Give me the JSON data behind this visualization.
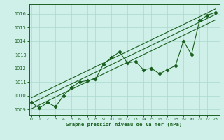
{
  "title": "Graphe pression niveau de la mer (hPa)",
  "bg_color": "#cff0e8",
  "grid_color": "#a8d8cc",
  "line_color": "#1a6020",
  "x_ticks": [
    0,
    1,
    2,
    3,
    4,
    5,
    6,
    7,
    8,
    9,
    10,
    11,
    12,
    13,
    14,
    15,
    16,
    17,
    18,
    19,
    20,
    21,
    22,
    23
  ],
  "y_ticks": [
    1009,
    1010,
    1011,
    1012,
    1013,
    1014,
    1015,
    1016
  ],
  "ylim": [
    1008.6,
    1016.7
  ],
  "xlim": [
    -0.3,
    23.5
  ],
  "data_y": [
    1009.5,
    1009.1,
    1009.5,
    1009.2,
    1010.0,
    1010.6,
    1011.0,
    1011.1,
    1011.2,
    1012.3,
    1012.8,
    1013.2,
    1012.4,
    1012.5,
    1011.9,
    1012.0,
    1011.6,
    1011.9,
    1012.2,
    1014.0,
    1013.0,
    1015.5,
    1015.9,
    1016.1
  ],
  "trend_line1_y": [
    1009.05,
    1015.55
  ],
  "trend_line2_y": [
    1009.45,
    1015.95
  ],
  "trend_line3_y": [
    1009.85,
    1016.35
  ],
  "trend_x": [
    0,
    23
  ],
  "marker": "D",
  "markersize": 2.2,
  "linewidth": 0.8
}
